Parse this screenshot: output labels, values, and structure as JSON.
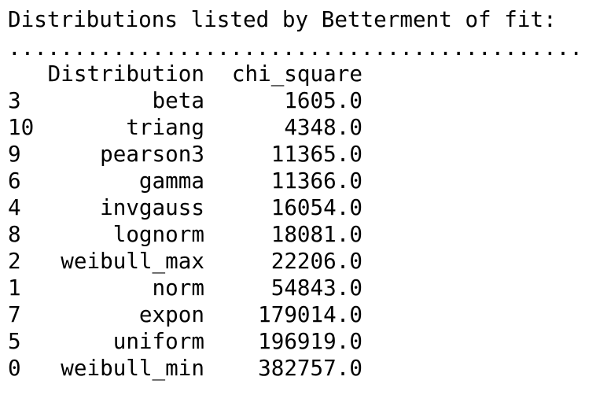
{
  "title": "Distributions listed by Betterment of fit:",
  "separator": "............................................",
  "table": {
    "columns": [
      "Distribution",
      "chi_square"
    ],
    "rows": [
      {
        "index": "3",
        "distribution": "beta",
        "chi_square": "1605.0"
      },
      {
        "index": "10",
        "distribution": "triang",
        "chi_square": "4348.0"
      },
      {
        "index": "9",
        "distribution": "pearson3",
        "chi_square": "11365.0"
      },
      {
        "index": "6",
        "distribution": "gamma",
        "chi_square": "11366.0"
      },
      {
        "index": "4",
        "distribution": "invgauss",
        "chi_square": "16054.0"
      },
      {
        "index": "8",
        "distribution": "lognorm",
        "chi_square": "18081.0"
      },
      {
        "index": "2",
        "distribution": "weibull_max",
        "chi_square": "22206.0"
      },
      {
        "index": "1",
        "distribution": "norm",
        "chi_square": "54843.0"
      },
      {
        "index": "7",
        "distribution": "expon",
        "chi_square": "179014.0"
      },
      {
        "index": "5",
        "distribution": "uniform",
        "chi_square": "196919.0"
      },
      {
        "index": "0",
        "distribution": "weibull_min",
        "chi_square": "382757.0"
      }
    ]
  }
}
